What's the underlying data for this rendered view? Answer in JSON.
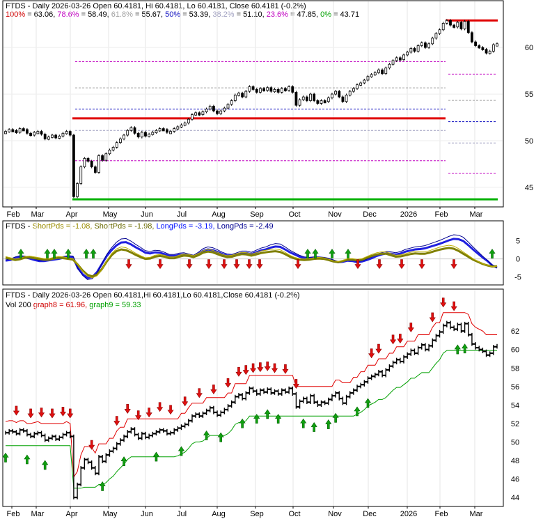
{
  "chart_data": [
    {
      "type": "line",
      "title": "FTDS - Daily 2026-03-26 Open 60.4181, Hi 60.4181, Lo 60.4181, Close 60.4181 (-0.2%)",
      "fib_levels": [
        {
          "label": "100%",
          "value": 63.06,
          "color": "#d00000"
        },
        {
          "label": "78.6%",
          "value": 58.49,
          "color": "#c000c0"
        },
        {
          "label": "61.8%",
          "value": 55.67,
          "color": "#a0a0a0"
        },
        {
          "label": "50%",
          "value": 53.39,
          "color": "#1010c0"
        },
        {
          "label": "38.2%",
          "value": 51.1,
          "color": "#a0a0c0"
        },
        {
          "label": "23.6%",
          "value": 47.85,
          "color": "#c000c0"
        },
        {
          "label": "0%",
          "value": 43.71,
          "color": "#00a000"
        }
      ],
      "ylim": [
        43.2,
        63.6
      ],
      "yticks": [
        45,
        50,
        55,
        60
      ],
      "support_lines": [
        {
          "value": 52.4,
          "color": "#e00000"
        },
        {
          "value": 63.1,
          "color": "#e00000"
        },
        {
          "value": 43.71,
          "color": "#00b000"
        }
      ],
      "close": [
        51.0,
        51.2,
        51.1,
        50.9,
        51.3,
        51.2,
        50.8,
        50.6,
        50.9,
        51.0,
        50.7,
        50.2,
        50.4,
        50.6,
        50.3,
        50.5,
        50.8,
        51.0,
        50.6,
        44.0,
        45.4,
        47.2,
        48.1,
        47.8,
        47.2,
        46.6,
        48.4,
        47.9,
        48.6,
        49.0,
        49.3,
        49.8,
        50.2,
        50.6,
        51.1,
        51.4,
        50.8,
        50.4,
        50.9,
        50.5,
        50.7,
        50.9,
        51.1,
        51.3,
        51.2,
        50.9,
        51.0,
        51.3,
        51.5,
        51.7,
        51.9,
        52.3,
        52.8,
        53.0,
        52.8,
        53.1,
        53.4,
        53.7,
        53.2,
        52.9,
        53.2,
        53.5,
        53.9,
        54.3,
        54.9,
        55.1,
        54.7,
        55.3,
        55.8,
        55.5,
        55.2,
        55.6,
        55.4,
        55.7,
        55.3,
        55.5,
        55.2,
        55.6,
        55.4,
        55.8,
        55.2,
        53.8,
        54.4,
        54.7,
        54.3,
        55.0,
        54.3,
        54.0,
        54.3,
        54.2,
        54.6,
        55.0,
        55.3,
        54.7,
        54.2,
        54.9,
        55.3,
        55.6,
        56.0,
        56.2,
        56.5,
        56.9,
        57.1,
        57.3,
        57.6,
        57.2,
        57.8,
        58.2,
        58.6,
        58.9,
        58.7,
        59.2,
        59.5,
        59.9,
        59.6,
        60.2,
        60.5,
        60.0,
        60.4,
        61.0,
        61.5,
        61.9,
        62.6,
        62.9,
        62.4,
        62.2,
        62.7,
        62.0,
        62.8,
        61.6,
        60.6,
        60.2,
        60.0,
        59.8,
        59.4,
        59.6,
        60.3,
        60.4
      ],
      "xticks": [
        "Feb",
        "Mar",
        "Apr",
        "May",
        "Jun",
        "Jul",
        "Aug",
        "Sep",
        "Oct",
        "Nov",
        "Dec",
        "2026",
        "Feb",
        "Mar"
      ]
    },
    {
      "type": "line",
      "title": "FTDS - ShortPds = -1.08, ShortPds = -1.98, LongPds = -3.19, LongPds = -2.49",
      "legend": [
        {
          "label": "FTDS - ",
          "color": "#000000"
        },
        {
          "label": "ShortPds = -1.08, ",
          "color": "#9a8c00"
        },
        {
          "label": "ShortPds = -1.98, ",
          "color": "#6a6a00"
        },
        {
          "label": "LongPds = -3.19, ",
          "color": "#0010ff"
        },
        {
          "label": "LongPds = -2.49",
          "color": "#000090"
        }
      ],
      "ylim": [
        -6.2,
        7.2
      ],
      "yticks": [
        5,
        0,
        -5
      ],
      "series": [
        {
          "color": "#2020e0",
          "values": [
            -0.5,
            -0.3,
            0.2,
            0.5,
            0.4,
            0.1,
            -0.3,
            -0.6,
            -0.6,
            -0.4,
            -0.2,
            0.0,
            0.3,
            0.5,
            0.4,
            -2.5,
            -4.2,
            -5.2,
            -5.0,
            -3.6,
            -1.4,
            0.8,
            2.4,
            3.7,
            4.5,
            4.6,
            4.0,
            3.2,
            2.5,
            1.7,
            1.5,
            1.8,
            1.7,
            1.3,
            0.8,
            0.8,
            1.1,
            1.2,
            0.9,
            0.6,
            1.3,
            2.2,
            2.6,
            2.4,
            1.9,
            1.3,
            0.9,
            0.8,
            1.2,
            1.6,
            1.6,
            1.3,
            1.8,
            2.3,
            2.6,
            3.1,
            3.4,
            3.3,
            2.6,
            1.8,
            1.2,
            0.6,
            0.2,
            0.1,
            0.2,
            0.2,
            0.1,
            -0.1,
            -0.5,
            -0.9,
            -0.8,
            -0.5,
            -0.6,
            -0.9,
            -0.7,
            -0.3,
            0.2,
            0.8,
            1.2,
            1.5,
            1.4,
            1.2,
            1.5,
            2.0,
            2.3,
            2.6,
            2.7,
            2.9,
            3.3,
            3.7,
            4.1,
            4.6,
            5.1,
            5.5,
            5.4,
            4.9,
            3.8,
            2.6,
            1.5,
            0.4,
            -0.6,
            -1.8,
            -2.4
          ]
        },
        {
          "color": "#808000",
          "values": [
            0.3,
            0.0,
            -0.3,
            -0.1,
            0.3,
            0.4,
            0.2,
            0.0,
            -0.2,
            -0.2,
            0.1,
            0.3,
            0.2,
            0.0,
            -0.2,
            -1.6,
            -3.2,
            -4.4,
            -4.8,
            -4.3,
            -2.8,
            -0.7,
            1.0,
            2.1,
            2.6,
            2.4,
            1.8,
            1.1,
            0.5,
            0.0,
            0.1,
            0.6,
            0.8,
            0.6,
            0.2,
            0.2,
            0.6,
            0.9,
            0.8,
            0.5,
            1.0,
            1.7,
            2.0,
            1.8,
            1.3,
            0.8,
            0.5,
            0.6,
            1.0,
            1.3,
            1.2,
            0.9,
            1.2,
            1.6,
            1.8,
            2.0,
            2.1,
            1.9,
            1.3,
            0.6,
            0.1,
            -0.2,
            -0.3,
            -0.2,
            0.0,
            0.1,
            0.0,
            -0.3,
            -0.7,
            -0.9,
            -0.6,
            -0.2,
            -0.2,
            -0.4,
            -0.2,
            0.3,
            0.8,
            1.2,
            1.4,
            1.4,
            1.0,
            0.6,
            0.7,
            1.0,
            1.3,
            1.5,
            1.4,
            1.4,
            1.7,
            2.1,
            2.5,
            2.8,
            3.0,
            2.8,
            2.2,
            1.4,
            0.6,
            -0.2,
            -0.8,
            -1.4,
            -1.8,
            -2.1,
            -2.0
          ]
        }
      ],
      "xticks": []
    },
    {
      "type": "line",
      "title": "FTDS - Daily 2026-03-26 Open 60.4181,Hi 60.4181,Lo 60.4181,Close 60.4181 (-0.2%)",
      "subtitle_parts": [
        {
          "text": "Vol 200 ",
          "color": "#000000"
        },
        {
          "text": "graph8 = 61.96, ",
          "color": "#d00000"
        },
        {
          "text": "graph9 = 59.33",
          "color": "#00a000"
        }
      ],
      "ylim": [
        43.4,
        64.2
      ],
      "yticks": [
        44,
        46,
        48,
        50,
        52,
        54,
        56,
        58,
        60,
        62
      ],
      "xticks": [
        "Feb",
        "Mar",
        "Apr",
        "May",
        "Jun",
        "Jul",
        "Aug",
        "Sep",
        "Oct",
        "Nov",
        "Dec",
        "2026",
        "Feb",
        "Mar"
      ]
    }
  ]
}
